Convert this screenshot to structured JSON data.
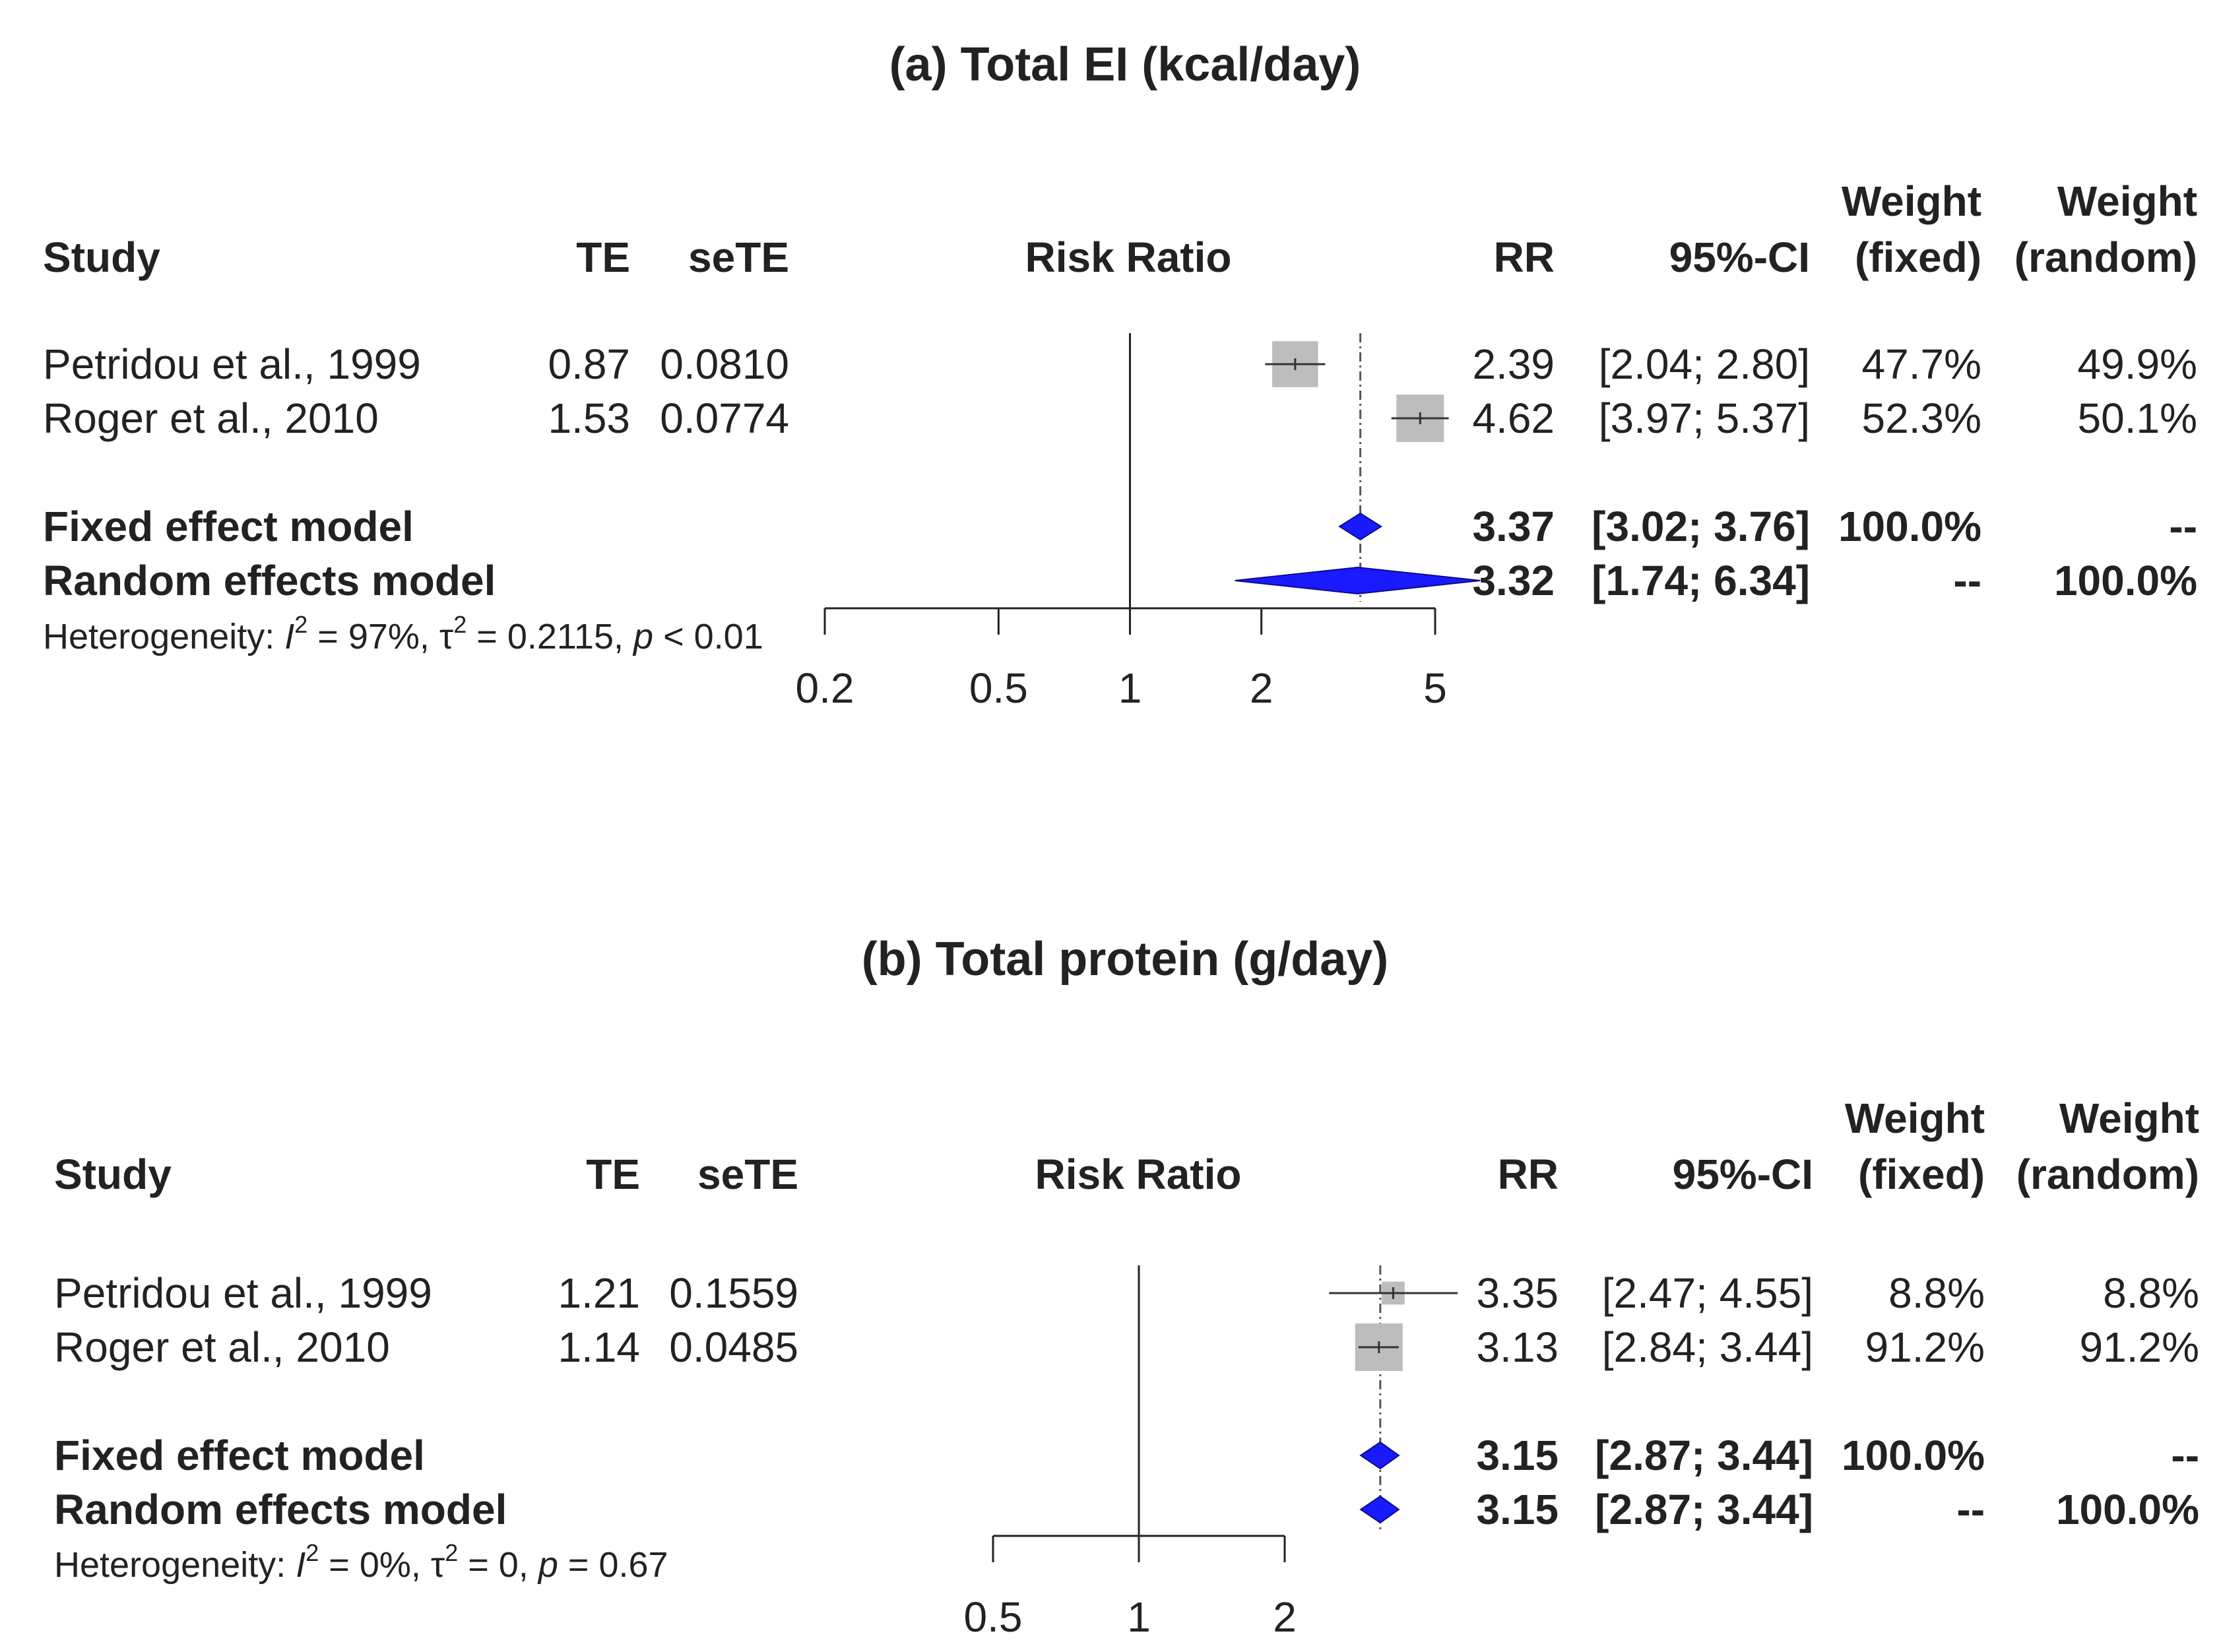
{
  "chart_data": [
    {
      "type": "forest",
      "title": "(a) Total EI (kcal/day)",
      "headers": {
        "study": "Study",
        "te": "TE",
        "sete": "seTE",
        "plot": "Risk Ratio",
        "rr": "RR",
        "ci": "95%-CI",
        "w_fixed_1": "Weight",
        "w_fixed_2": "(fixed)",
        "w_random_1": "Weight",
        "w_random_2": "(random)"
      },
      "studies": [
        {
          "name": "Petridou et al., 1999",
          "te": "0.87",
          "sete": "0.0810",
          "rr": "2.39",
          "ci": "[2.04; 2.80]",
          "w_fixed": "47.7%",
          "w_random": "49.9%",
          "rr_val": 2.39,
          "lo": 2.04,
          "hi": 2.8,
          "weight": 47.7
        },
        {
          "name": "Roger et al., 2010",
          "te": "1.53",
          "sete": "0.0774",
          "rr": "4.62",
          "ci": "[3.97; 5.37]",
          "w_fixed": "52.3%",
          "w_random": "50.1%",
          "rr_val": 4.62,
          "lo": 3.97,
          "hi": 5.37,
          "weight": 52.3
        }
      ],
      "models": [
        {
          "name": "Fixed effect model",
          "rr": "3.37",
          "ci": "[3.02; 3.76]",
          "w_fixed": "100.0%",
          "w_random": "--",
          "rr_val": 3.37,
          "lo": 3.02,
          "hi": 3.76
        },
        {
          "name": "Random effects model",
          "rr": "3.32",
          "ci": "[1.74; 6.34]",
          "w_fixed": "--",
          "w_random": "100.0%",
          "rr_val": 3.32,
          "lo": 1.74,
          "hi": 6.34
        }
      ],
      "heterogeneity": {
        "prefix": "Heterogeneity: ",
        "i2": "97%",
        "tau2": "0.2115",
        "p_op": "<",
        "p": "0.01"
      },
      "xscale": "log",
      "xticks": [
        0.2,
        0.5,
        1,
        2,
        5
      ],
      "xtick_labels": [
        "0.2",
        "0.5",
        "1",
        "2",
        "5"
      ],
      "null_value": 1,
      "colors": {
        "diamond": "#1a1aff",
        "square": "#bdbdbd",
        "line": "#222222"
      }
    },
    {
      "type": "forest",
      "title": "(b) Total protein (g/day)",
      "headers": {
        "study": "Study",
        "te": "TE",
        "sete": "seTE",
        "plot": "Risk Ratio",
        "rr": "RR",
        "ci": "95%-CI",
        "w_fixed_1": "Weight",
        "w_fixed_2": "(fixed)",
        "w_random_1": "Weight",
        "w_random_2": "(random)"
      },
      "studies": [
        {
          "name": "Petridou et al., 1999",
          "te": "1.21",
          "sete": "0.1559",
          "rr": "3.35",
          "ci": "[2.47; 4.55]",
          "w_fixed": "8.8%",
          "w_random": "8.8%",
          "rr_val": 3.35,
          "lo": 2.47,
          "hi": 4.55,
          "weight": 8.8
        },
        {
          "name": "Roger et al., 2010",
          "te": "1.14",
          "sete": "0.0485",
          "rr": "3.13",
          "ci": "[2.84; 3.44]",
          "w_fixed": "91.2%",
          "w_random": "91.2%",
          "rr_val": 3.13,
          "lo": 2.84,
          "hi": 3.44,
          "weight": 91.2
        }
      ],
      "models": [
        {
          "name": "Fixed effect model",
          "rr": "3.15",
          "ci": "[2.87; 3.44]",
          "w_fixed": "100.0%",
          "w_random": "--",
          "rr_val": 3.15,
          "lo": 2.87,
          "hi": 3.44
        },
        {
          "name": "Random effects model",
          "rr": "3.15",
          "ci": "[2.87; 3.44]",
          "w_fixed": "--",
          "w_random": "100.0%",
          "rr_val": 3.15,
          "lo": 2.87,
          "hi": 3.44
        }
      ],
      "heterogeneity": {
        "prefix": "Heterogeneity: ",
        "i2": "0%",
        "tau2": "0",
        "p_op": "=",
        "p": "0.67"
      },
      "xscale": "log",
      "xticks": [
        0.5,
        1,
        2
      ],
      "xtick_labels": [
        "0.5",
        "1",
        "2"
      ],
      "null_value": 1,
      "colors": {
        "diamond": "#1a1aff",
        "square": "#bdbdbd",
        "line": "#222222"
      }
    }
  ]
}
